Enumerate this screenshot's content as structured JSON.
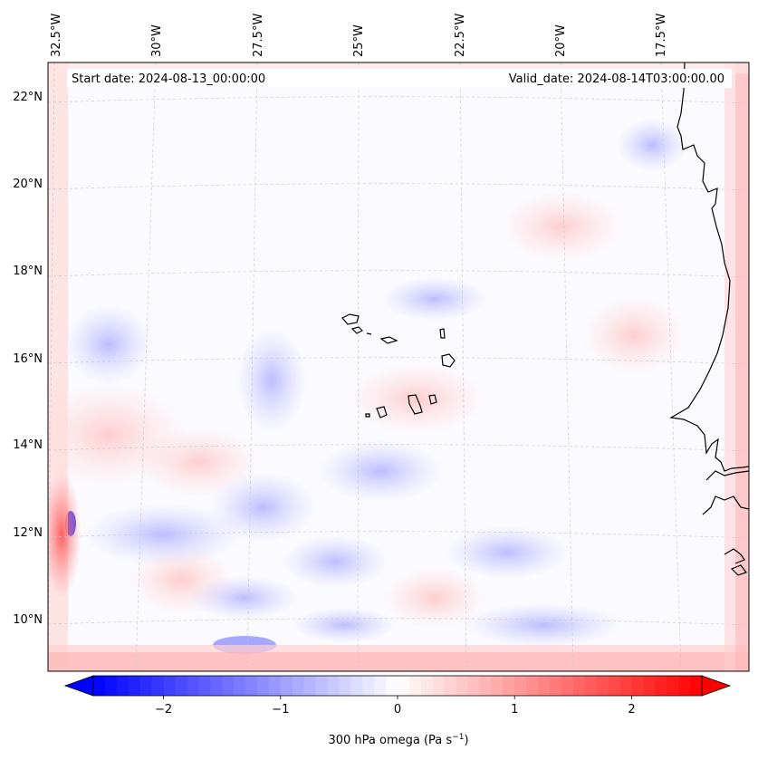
{
  "map": {
    "start_date_text": "Start date: 2024-08-13_00:00:00",
    "valid_date_text": "Valid_date: 2024-08-14T03:00:00.00",
    "longitude_labels": [
      "32.5°W",
      "30°W",
      "27.5°W",
      "25°W",
      "22.5°W",
      "20°W",
      "17.5°W"
    ],
    "latitude_labels": [
      "22°N",
      "20°N",
      "18°N",
      "16°N",
      "14°N",
      "12°N",
      "10°N"
    ],
    "field": "300 hPa omega",
    "colorbar": {
      "label": "300 hPa omega (Pa s",
      "label_exponent": "−1",
      "label_close": ")",
      "tick_labels": [
        "−2",
        "−1",
        "0",
        "1",
        "2"
      ],
      "ticks": [
        -2,
        -1,
        0,
        1,
        2
      ],
      "range": [
        -2.6,
        2.6
      ],
      "extend": "both",
      "colormap": "bwr",
      "low_color": "#0000ff",
      "mid_color": "#ffffff",
      "high_color": "#ff0000"
    },
    "colors": {
      "coastline": "#000000",
      "gridline": "#c8c8d2"
    }
  }
}
